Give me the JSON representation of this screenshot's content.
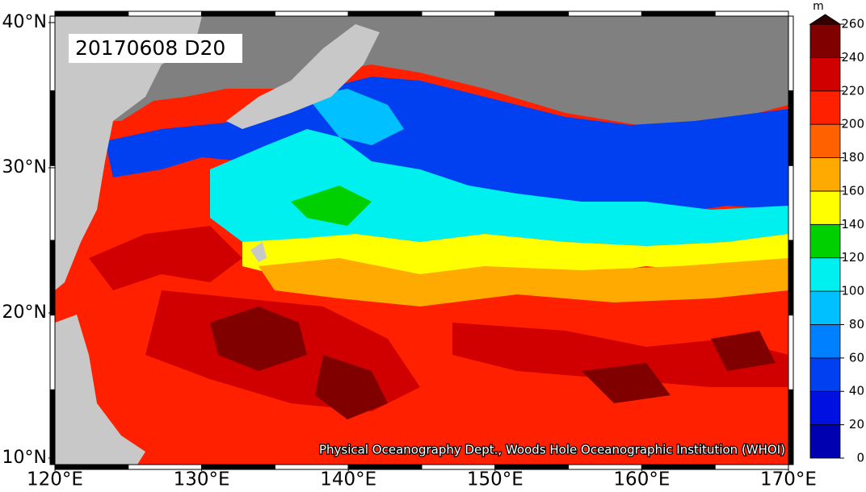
{
  "map": {
    "title": "20170608 D20",
    "lon_ticks": [
      {
        "value": 120,
        "label": "120°E"
      },
      {
        "value": 130,
        "label": "130°E"
      },
      {
        "value": 140,
        "label": "140°E"
      },
      {
        "value": 150,
        "label": "150°E"
      },
      {
        "value": 160,
        "label": "160°E"
      },
      {
        "value": 170,
        "label": "170°E"
      }
    ],
    "lat_ticks": [
      {
        "value": 10,
        "label": "10°N"
      },
      {
        "value": 20,
        "label": "20°N"
      },
      {
        "value": 30,
        "label": "30°N"
      },
      {
        "value": 40,
        "label": "40°N"
      }
    ],
    "xlim": [
      120,
      170
    ],
    "ylim": [
      10,
      40
    ],
    "credit": "Physical Oceanography Dept., Woods Hole Oceanographic Institution (WHOI)"
  },
  "colorbar": {
    "unit": "m",
    "ticks": [
      0,
      20,
      40,
      60,
      80,
      100,
      120,
      140,
      160,
      180,
      200,
      220,
      240,
      260
    ],
    "colors": [
      "#0000b0",
      "#0010e0",
      "#0040f0",
      "#0080ff",
      "#00c0ff",
      "#00f0f0",
      "#00d000",
      "#ffff00",
      "#ffaa00",
      "#ff6000",
      "#ff2000",
      "#d00000",
      "#800000"
    ],
    "over_color": "#300000"
  }
}
